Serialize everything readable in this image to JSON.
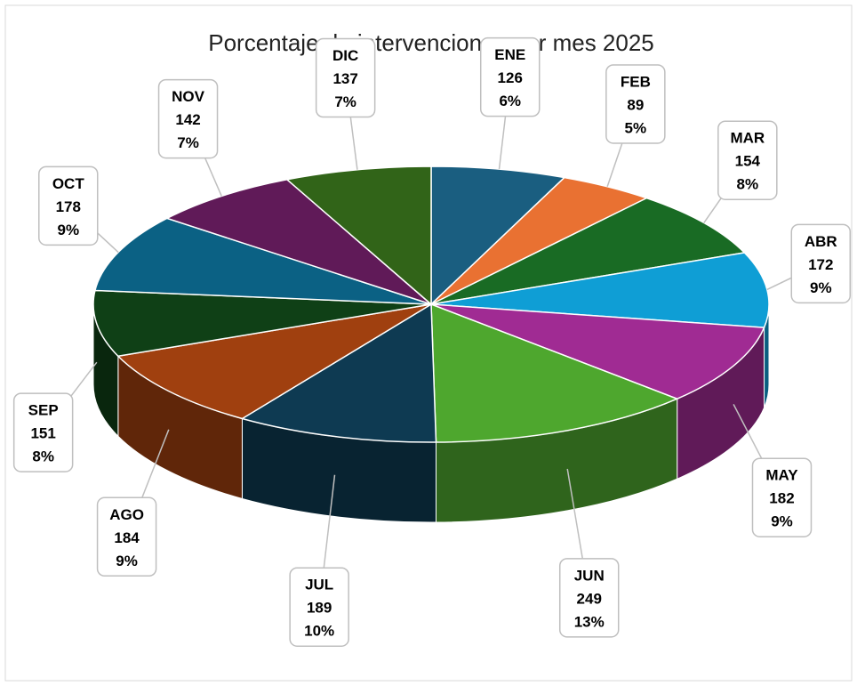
{
  "chart_data": {
    "type": "pie3d",
    "title": "Porcentaje de intervenciones por mes 2025",
    "categories": [
      "ENE",
      "FEB",
      "MAR",
      "ABR",
      "MAY",
      "JUN",
      "JUL",
      "AGO",
      "SEP",
      "OCT",
      "NOV",
      "DIC"
    ],
    "values": [
      126,
      89,
      154,
      172,
      182,
      249,
      189,
      184,
      151,
      178,
      142,
      137
    ],
    "percent_labels": [
      "6%",
      "5%",
      "8%",
      "9%",
      "9%",
      "13%",
      "10%",
      "9%",
      "8%",
      "9%",
      "7%",
      "7%"
    ],
    "colors": [
      "#1a5e80",
      "#e97132",
      "#196b24",
      "#0f9ed5",
      "#a02b93",
      "#4ea72e",
      "#0e3a52",
      "#a0400f",
      "#0f4016",
      "#0b6184",
      "#601a58",
      "#316418"
    ]
  }
}
